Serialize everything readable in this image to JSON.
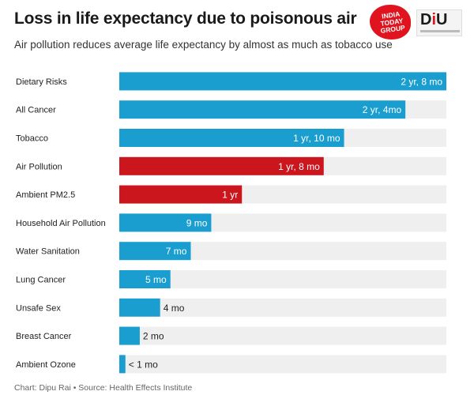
{
  "header": {
    "title": "Loss in life expectancy due to poisonous air",
    "subtitle": "Air pollution reduces average life expectancy by almost as much as tobacco use"
  },
  "logos": {
    "india_today": "INDIA TODAY GROUP",
    "diu": "DIU"
  },
  "footer": {
    "credit": "Chart: Dipu Rai • Source: Health Effects Institute"
  },
  "chart_data": {
    "type": "bar",
    "orientation": "horizontal",
    "unit": "years",
    "categories": [
      "Dietary Risks",
      "All Cancer",
      "Tobacco",
      "Air Pollution",
      "Ambient PM2.5",
      "Household Air Pollution",
      "Water Sanitation",
      "Lung Cancer",
      "Unsafe Sex",
      "Breast Cancer",
      "Ambient Ozone"
    ],
    "values": [
      2.667,
      2.333,
      1.833,
      1.667,
      1.0,
      0.75,
      0.583,
      0.417,
      0.333,
      0.167,
      0.05
    ],
    "labels": [
      "2 yr, 8 mo",
      "2 yr, 4mo",
      "1 yr, 10 mo",
      "1 yr, 8 mo",
      "1 yr",
      "9 mo",
      "7 mo",
      "5 mo",
      "4 mo",
      "2 mo",
      "< 1 mo"
    ],
    "highlighted": [
      "Air Pollution",
      "Ambient PM2.5"
    ],
    "xlim": [
      0,
      2.667
    ],
    "grid": false,
    "colors": {
      "default": "#1a9ed0",
      "highlight": "#cc161e",
      "track": "#efefef",
      "label_inside": "#ffffff",
      "label_outside": "#222222"
    }
  }
}
